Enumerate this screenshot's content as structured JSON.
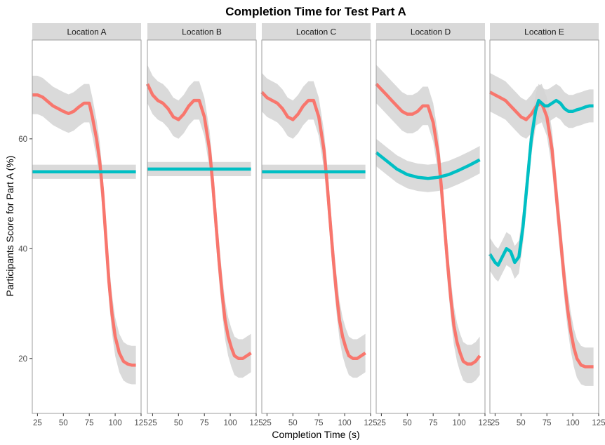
{
  "chart_data": {
    "type": "line",
    "title": "Completion Time for Test Part A",
    "xlabel": "Completion Time (s)",
    "ylabel": "Participants Score for Part A (%)",
    "xlim": [
      20,
      125
    ],
    "ylim": [
      10,
      78
    ],
    "x_ticks": [
      25,
      50,
      75,
      100,
      125
    ],
    "x_tick_labels": [
      "25",
      "50",
      "75",
      "100",
      "125"
    ],
    "y_ticks": [
      20,
      40,
      60
    ],
    "y_tick_labels": [
      "20",
      "40",
      "60"
    ],
    "grid": false,
    "legend": "none",
    "colors": {
      "red": "#F8766D",
      "teal": "#00BFC4",
      "ribbon": "#d3d3d3",
      "strip": "#d9d9d9"
    },
    "panels": [
      {
        "label": "Location A",
        "series": [
          {
            "color": "red",
            "band": 3.5,
            "x": [
              20,
              25,
              30,
              35,
              40,
              45,
              50,
              55,
              60,
              65,
              70,
              75,
              78,
              82,
              85,
              88,
              91,
              94,
              97,
              100,
              104,
              108,
              112,
              116,
              120
            ],
            "y": [
              68,
              68,
              67.6,
              66.8,
              66,
              65.5,
              65,
              64.6,
              65,
              65.8,
              66.5,
              66.5,
              64,
              60,
              56,
              50,
              42,
              34,
              28,
              24,
              21,
              19.5,
              19,
              18.8,
              18.8
            ]
          },
          {
            "color": "teal",
            "band": 1.3,
            "x": [
              20,
              40,
              60,
              80,
              100,
              120
            ],
            "y": [
              54,
              54,
              54,
              54,
              54,
              54
            ]
          }
        ]
      },
      {
        "label": "Location B",
        "series": [
          {
            "color": "red",
            "band": 3.5,
            "x": [
              20,
              25,
              30,
              35,
              40,
              45,
              50,
              55,
              60,
              65,
              70,
              75,
              80,
              83,
              86,
              89,
              92,
              95,
              98,
              101,
              104,
              108,
              112,
              116,
              120
            ],
            "y": [
              70,
              68,
              67,
              66.5,
              65.5,
              64,
              63.5,
              64.5,
              66,
              67,
              67,
              64,
              58,
              52,
              45,
              38,
              32,
              27,
              24,
              22,
              20.5,
              20,
              20,
              20.5,
              21
            ]
          },
          {
            "color": "teal",
            "band": 1.3,
            "x": [
              20,
              40,
              60,
              80,
              100,
              120
            ],
            "y": [
              54.5,
              54.5,
              54.5,
              54.5,
              54.5,
              54.5
            ]
          }
        ]
      },
      {
        "label": "Location C",
        "series": [
          {
            "color": "red",
            "band": 3.5,
            "x": [
              20,
              25,
              30,
              35,
              40,
              45,
              50,
              55,
              60,
              65,
              70,
              75,
              80,
              83,
              86,
              89,
              92,
              95,
              98,
              101,
              104,
              108,
              112,
              116,
              120
            ],
            "y": [
              68.5,
              67.5,
              67,
              66.5,
              65.5,
              64,
              63.5,
              64.5,
              66,
              67,
              67,
              64,
              58,
              52,
              45,
              38,
              32,
              27,
              24,
              22,
              20.5,
              20,
              20,
              20.5,
              21
            ]
          },
          {
            "color": "teal",
            "band": 1.3,
            "x": [
              20,
              40,
              60,
              80,
              100,
              120
            ],
            "y": [
              54,
              54,
              54,
              54,
              54,
              54
            ]
          }
        ]
      },
      {
        "label": "Location D",
        "series": [
          {
            "color": "red",
            "band": 3.5,
            "x": [
              20,
              25,
              30,
              35,
              40,
              45,
              50,
              55,
              60,
              65,
              70,
              75,
              80,
              83,
              86,
              89,
              92,
              95,
              98,
              101,
              104,
              108,
              112,
              116,
              120
            ],
            "y": [
              70,
              69,
              68,
              67,
              66,
              65,
              64.5,
              64.5,
              65,
              66,
              66,
              63,
              57,
              51,
              44,
              37,
              31,
              26,
              23,
              21,
              19.5,
              19,
              19,
              19.5,
              20.5
            ]
          },
          {
            "color": "teal",
            "band": 2.5,
            "x": [
              20,
              30,
              40,
              50,
              60,
              70,
              80,
              90,
              100,
              110,
              120
            ],
            "y": [
              57.5,
              56,
              54.5,
              53.5,
              53,
              52.8,
              53,
              53.5,
              54.3,
              55.2,
              56.2
            ]
          }
        ]
      },
      {
        "label": "Location E",
        "series": [
          {
            "color": "red",
            "band": 3.5,
            "x": [
              20,
              25,
              30,
              35,
              40,
              45,
              50,
              55,
              60,
              65,
              70,
              75,
              80,
              83,
              86,
              89,
              92,
              95,
              98,
              101,
              104,
              108,
              112,
              116,
              120
            ],
            "y": [
              68.5,
              68,
              67.5,
              67,
              66,
              65,
              64,
              63.5,
              64.5,
              66,
              66.5,
              64,
              58,
              52,
              46,
              40,
              34,
              29,
              25,
              22,
              20,
              18.8,
              18.5,
              18.5,
              18.5
            ]
          },
          {
            "color": "teal",
            "band": 3,
            "x": [
              20,
              25,
              28,
              32,
              36,
              40,
              44,
              48,
              52,
              56,
              60,
              64,
              67,
              70,
              73,
              76,
              80,
              84,
              88,
              92,
              96,
              100,
              104,
              108,
              112,
              116,
              120
            ],
            "y": [
              39,
              37.5,
              37,
              38.5,
              40,
              39.5,
              37.5,
              38.5,
              44,
              52,
              60,
              65,
              67,
              66.5,
              66,
              66,
              66.5,
              67,
              66.5,
              65.5,
              65,
              65,
              65.3,
              65.5,
              65.8,
              66,
              66
            ]
          }
        ]
      }
    ]
  }
}
